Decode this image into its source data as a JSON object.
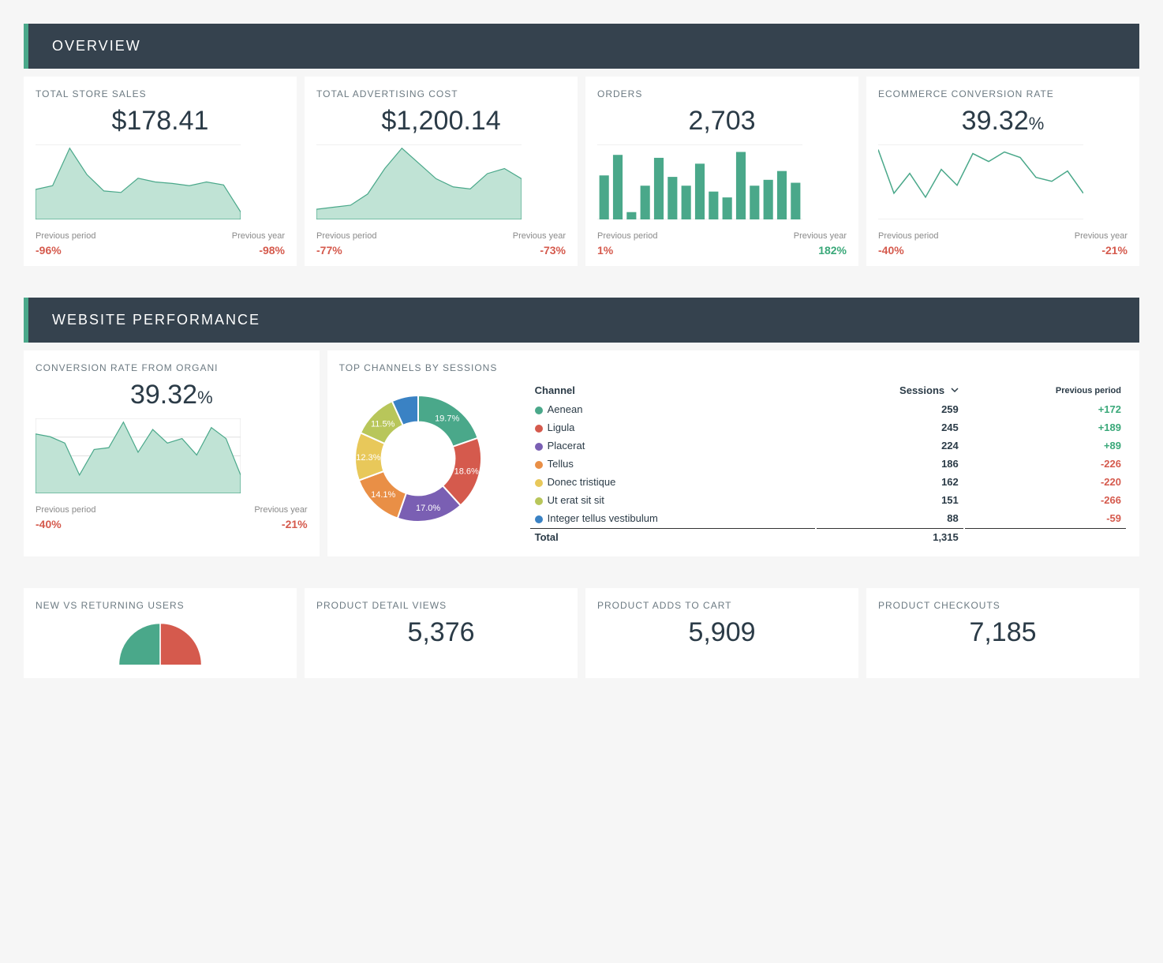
{
  "colors": {
    "header_bg": "#35424e",
    "accent": "#4aa88a",
    "area_fill": "#c0e3d5",
    "area_stroke": "#4aa88a",
    "bar_fill": "#4aa88a",
    "line_stroke": "#4aa88a",
    "grid": "#e0e0e0",
    "negative": "#d55a4d",
    "positive": "#3aa879"
  },
  "sections": {
    "overview_title": "OVERVIEW",
    "website_title": "WEBSITE PERFORMANCE"
  },
  "overview": {
    "cards": [
      {
        "title": "TOTAL STORE SALES",
        "value": "$178.41",
        "chart": {
          "type": "area",
          "values": [
            40,
            45,
            95,
            60,
            38,
            36,
            55,
            50,
            48,
            45,
            50,
            46,
            10
          ]
        },
        "prev_period": {
          "label": "Previous period",
          "value": "-96%",
          "sign": "neg"
        },
        "prev_year": {
          "label": "Previous year",
          "value": "-98%",
          "sign": "neg"
        }
      },
      {
        "title": "TOTAL ADVERTISING COST",
        "value": "$1,200.14",
        "chart": {
          "type": "area",
          "values": [
            10,
            12,
            14,
            25,
            50,
            70,
            55,
            40,
            32,
            30,
            45,
            50,
            40
          ]
        },
        "prev_period": {
          "label": "Previous period",
          "value": "-77%",
          "sign": "neg"
        },
        "prev_year": {
          "label": "Previous year",
          "value": "-73%",
          "sign": "neg"
        }
      },
      {
        "title": "ORDERS",
        "value": "2,703",
        "chart": {
          "type": "bar",
          "values": [
            60,
            88,
            10,
            46,
            84,
            58,
            46,
            76,
            38,
            30,
            92,
            46,
            54,
            66,
            50
          ]
        },
        "prev_period": {
          "label": "Previous period",
          "value": "1%",
          "sign": "neg"
        },
        "prev_year": {
          "label": "Previous year",
          "value": "182%",
          "sign": "pos"
        }
      },
      {
        "title": "ECOMMERCE CONVERSION RATE",
        "value": "39.32",
        "value_suffix": "%",
        "chart": {
          "type": "line",
          "values": [
            85,
            30,
            55,
            25,
            60,
            40,
            80,
            70,
            82,
            75,
            50,
            45,
            58,
            30
          ]
        },
        "prev_period": {
          "label": "Previous period",
          "value": "-40%",
          "sign": "neg"
        },
        "prev_year": {
          "label": "Previous year",
          "value": "-21%",
          "sign": "neg"
        }
      }
    ]
  },
  "website": {
    "conversion": {
      "title": "CONVERSION RATE FROM ORGANI",
      "value": "39.32",
      "value_suffix": "%",
      "chart": {
        "type": "area_grid",
        "values": [
          65,
          62,
          55,
          20,
          48,
          50,
          78,
          45,
          70,
          55,
          60,
          42,
          72,
          60,
          20
        ],
        "grid_lines": 4
      },
      "prev_period": {
        "label": "Previous period",
        "value": "-40%",
        "sign": "neg"
      },
      "prev_year": {
        "label": "Previous year",
        "value": "-21%",
        "sign": "neg"
      }
    },
    "channels": {
      "title": "TOP CHANNELS BY SESSIONS",
      "header_channel": "Channel",
      "header_sessions": "Sessions",
      "header_prev": "Previous period",
      "total_label": "Total",
      "total_value": "1,315",
      "donut": {
        "type": "donut",
        "inner_radius_ratio": 0.58,
        "label_color": "#ffffff",
        "label_fontsize": 11,
        "slices": [
          {
            "label": "19.7%",
            "pct": 19.7,
            "color": "#4aa88a"
          },
          {
            "label": "18.6%",
            "pct": 18.6,
            "color": "#d55a4d"
          },
          {
            "label": "17.0%",
            "pct": 17.0,
            "color": "#7a5fb3"
          },
          {
            "label": "14.1%",
            "pct": 14.1,
            "color": "#e98f46"
          },
          {
            "label": "12.3%",
            "pct": 12.3,
            "color": "#e8c85a"
          },
          {
            "label": "11.5%",
            "pct": 11.5,
            "color": "#b8c65a"
          },
          {
            "label": "",
            "pct": 6.8,
            "color": "#3a82c4"
          }
        ]
      },
      "rows": [
        {
          "color": "#4aa88a",
          "name": "Aenean",
          "sessions": "259",
          "prev": "+172",
          "sign": "pos"
        },
        {
          "color": "#d55a4d",
          "name": "Ligula",
          "sessions": "245",
          "prev": "+189",
          "sign": "pos"
        },
        {
          "color": "#7a5fb3",
          "name": "Placerat",
          "sessions": "224",
          "prev": "+89",
          "sign": "pos"
        },
        {
          "color": "#e98f46",
          "name": "Tellus",
          "sessions": "186",
          "prev": "-226",
          "sign": "neg"
        },
        {
          "color": "#e8c85a",
          "name": "Donec tristique",
          "sessions": "162",
          "prev": "-220",
          "sign": "neg"
        },
        {
          "color": "#b8c65a",
          "name": "Ut erat sit sit",
          "sessions": "151",
          "prev": "-266",
          "sign": "neg"
        },
        {
          "color": "#3a82c4",
          "name": "Integer tellus vestibulum",
          "sessions": "88",
          "prev": "-59",
          "sign": "neg"
        }
      ]
    },
    "bottom_cards": [
      {
        "title": "NEW VS RETURNING USERS",
        "value": "",
        "chart": {
          "type": "pie_partial",
          "slices": [
            {
              "pct": 40,
              "color": "#d55a4d"
            },
            {
              "pct": 60,
              "color": "#4aa88a"
            }
          ]
        }
      },
      {
        "title": "PRODUCT DETAIL VIEWS",
        "value": "5,376"
      },
      {
        "title": "PRODUCT ADDS TO CART",
        "value": "5,909"
      },
      {
        "title": "PRODUCT CHECKOUTS",
        "value": "7,185"
      }
    ]
  }
}
